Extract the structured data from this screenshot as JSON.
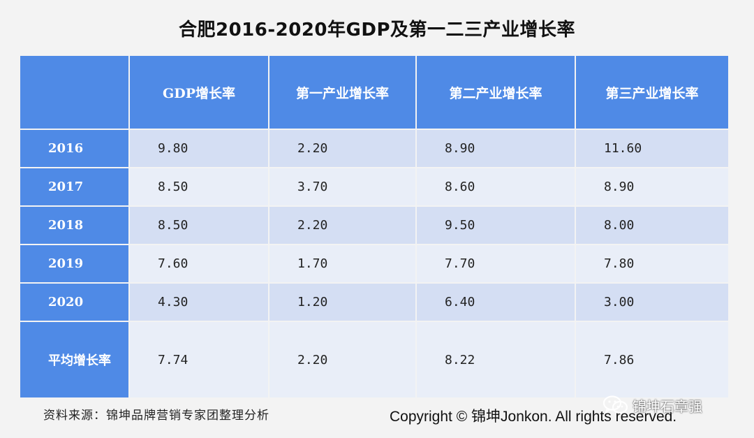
{
  "title": "合肥2016-2020年GDP及第一二三产业增长率",
  "table": {
    "headers": [
      "",
      "GDP增长率",
      "第一产业增长率",
      "第二产业增长率",
      "第三产业增长率"
    ],
    "rows": [
      {
        "label": "2016",
        "values": [
          "9.80",
          "2.20",
          "8.90",
          "11.60"
        ]
      },
      {
        "label": "2017",
        "values": [
          "8.50",
          "3.70",
          "8.60",
          "8.90"
        ]
      },
      {
        "label": "2018",
        "values": [
          "8.50",
          "2.20",
          "9.50",
          "8.00"
        ]
      },
      {
        "label": "2019",
        "values": [
          "7.60",
          "1.70",
          "7.70",
          "7.80"
        ]
      },
      {
        "label": "2020",
        "values": [
          "4.30",
          "1.20",
          "6.40",
          "3.00"
        ]
      },
      {
        "label": "平均增长率",
        "values": [
          "7.74",
          "2.20",
          "8.22",
          "7.86"
        ]
      }
    ]
  },
  "chart_data": {
    "type": "table",
    "title": "合肥2016-2020年GDP及第一二三产业增长率",
    "columns": [
      "GDP增长率",
      "第一产业增长率",
      "第二产业增长率",
      "第三产业增长率"
    ],
    "categories": [
      "2016",
      "2017",
      "2018",
      "2019",
      "2020",
      "平均增长率"
    ],
    "series": [
      {
        "name": "GDP增长率",
        "values": [
          9.8,
          8.5,
          8.5,
          7.6,
          4.3,
          7.74
        ]
      },
      {
        "name": "第一产业增长率",
        "values": [
          2.2,
          3.7,
          2.2,
          1.7,
          1.2,
          2.2
        ]
      },
      {
        "name": "第二产业增长率",
        "values": [
          8.9,
          8.6,
          9.5,
          7.7,
          6.4,
          8.22
        ]
      },
      {
        "name": "第三产业增长率",
        "values": [
          11.6,
          8.9,
          8.0,
          7.8,
          3.0,
          7.86
        ]
      }
    ]
  },
  "footer": {
    "source": "资料来源：锦坤品牌营销专家团整理分析",
    "copyright": "Copyright © 锦坤Jonkon. All rights reserved."
  },
  "watermark": {
    "text": "锦坤石章强",
    "icon": "wechat-icon"
  },
  "colors": {
    "header_blue": "#4f8ae6",
    "row_dark": "#d4def3",
    "row_light": "#e9eef8",
    "background": "#f3f3f3"
  }
}
